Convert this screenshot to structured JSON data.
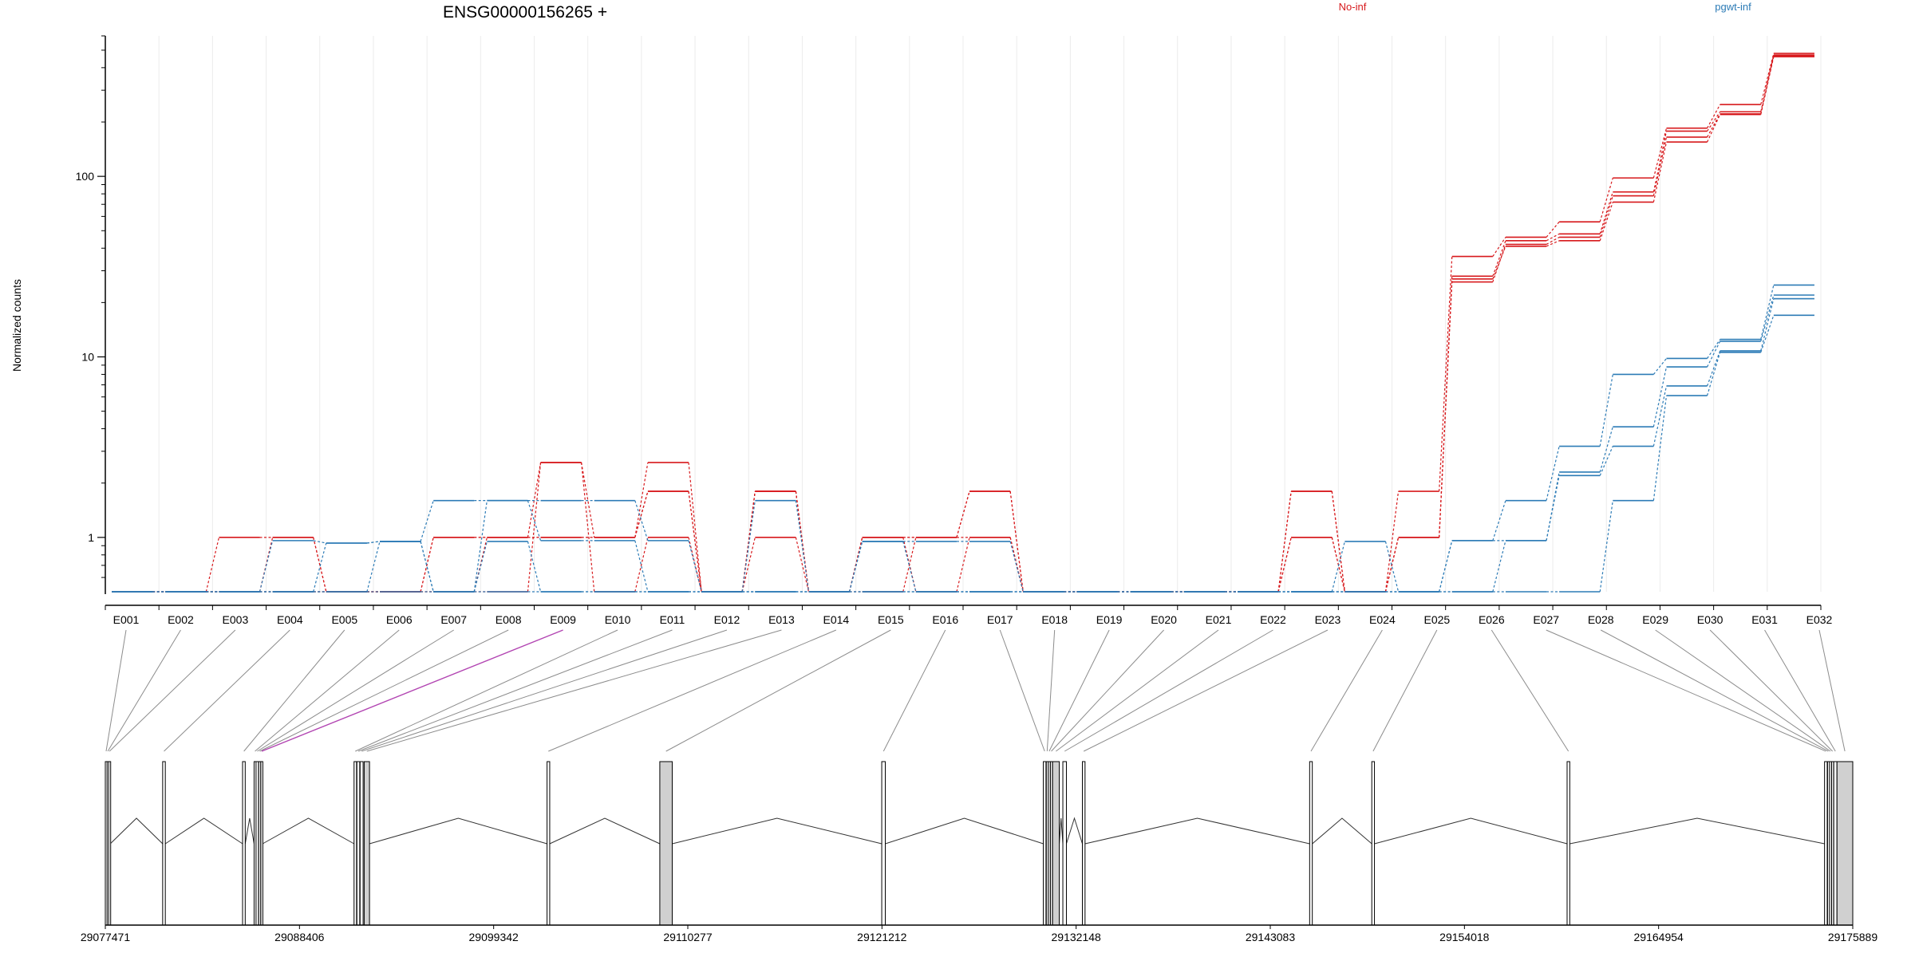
{
  "chart_data": {
    "type": "line",
    "title": "ENSG00000156265 +",
    "ylabel": "Normalized counts",
    "xlabel": "",
    "y_scale": "log",
    "ylim": [
      0.5,
      600
    ],
    "y_ticks": [
      {
        "value": 1,
        "label": "1"
      },
      {
        "value": 10,
        "label": "10"
      },
      {
        "value": 100,
        "label": "100"
      }
    ],
    "grid": true,
    "legend_position": "top-right",
    "categories": [
      "E001",
      "E002",
      "E003",
      "E004",
      "E005",
      "E006",
      "E007",
      "E008",
      "E009",
      "E010",
      "E011",
      "E012",
      "E013",
      "E014",
      "E015",
      "E016",
      "E017",
      "E018",
      "E019",
      "E020",
      "E021",
      "E022",
      "E023",
      "E024",
      "E025",
      "E026",
      "E027",
      "E028",
      "E029",
      "E030",
      "E031",
      "E032"
    ],
    "legend": [
      {
        "name": "No-inf",
        "color": "#d7191c"
      },
      {
        "name": "pgwt-inf",
        "color": "#2c7bb6"
      }
    ],
    "series": [
      {
        "group": "No-inf",
        "color": "#d7191c",
        "values": [
          0.5,
          0.5,
          1.0,
          1.0,
          0.5,
          0.5,
          1.0,
          1.0,
          2.6,
          1.0,
          2.6,
          0.5,
          1.8,
          0.5,
          1.0,
          1.0,
          1.8,
          0.5,
          0.5,
          0.5,
          0.5,
          0.5,
          1.8,
          0.5,
          1.8,
          36,
          46,
          56,
          98,
          185,
          250,
          480
        ]
      },
      {
        "group": "No-inf",
        "color": "#d7191c",
        "values": [
          0.5,
          0.5,
          0.5,
          1.0,
          0.5,
          0.5,
          1.0,
          1.0,
          1.0,
          1.0,
          1.8,
          0.5,
          1.8,
          0.5,
          1.0,
          1.0,
          1.0,
          0.5,
          0.5,
          0.5,
          0.5,
          0.5,
          1.0,
          0.5,
          1.0,
          28,
          44,
          48,
          82,
          178,
          228,
          470
        ]
      },
      {
        "group": "No-inf",
        "color": "#d7191c",
        "values": [
          0.5,
          0.5,
          0.5,
          0.5,
          0.5,
          0.5,
          0.5,
          1.0,
          1.0,
          1.0,
          1.8,
          0.5,
          1.0,
          0.5,
          1.0,
          0.5,
          1.0,
          0.5,
          0.5,
          0.5,
          0.5,
          0.5,
          1.0,
          0.5,
          1.0,
          26,
          42,
          46,
          78,
          165,
          222,
          465
        ]
      },
      {
        "group": "No-inf",
        "color": "#d7191c",
        "values": [
          0.5,
          0.5,
          0.5,
          0.5,
          0.5,
          0.5,
          0.5,
          0.5,
          2.6,
          0.5,
          1.0,
          0.5,
          1.8,
          0.5,
          0.5,
          1.0,
          1.8,
          0.5,
          0.5,
          0.5,
          0.5,
          0.5,
          1.8,
          0.5,
          1.0,
          27,
          41,
          44,
          72,
          155,
          220,
          460
        ]
      },
      {
        "group": "pgwt-inf",
        "color": "#2c7bb6",
        "values": [
          0.5,
          0.5,
          0.5,
          0.96,
          0.93,
          0.95,
          1.6,
          1.6,
          1.6,
          1.6,
          0.96,
          0.5,
          1.6,
          0.5,
          0.95,
          0.95,
          0.95,
          0.5,
          0.5,
          0.5,
          0.5,
          0.5,
          0.5,
          0.95,
          0.5,
          0.96,
          1.6,
          3.2,
          8.0,
          9.8,
          12.5,
          25
        ]
      },
      {
        "group": "pgwt-inf",
        "color": "#2c7bb6",
        "values": [
          0.5,
          0.5,
          0.5,
          0.5,
          0.93,
          0.95,
          0.5,
          1.6,
          0.96,
          0.96,
          0.5,
          0.5,
          0.5,
          0.5,
          0.95,
          0.5,
          0.5,
          0.5,
          0.5,
          0.5,
          0.5,
          0.5,
          0.5,
          0.5,
          0.5,
          0.96,
          0.96,
          2.3,
          4.1,
          8.8,
          12.2,
          22
        ]
      },
      {
        "group": "pgwt-inf",
        "color": "#2c7bb6",
        "values": [
          0.5,
          0.5,
          0.5,
          0.5,
          0.5,
          0.95,
          0.5,
          0.95,
          0.5,
          0.5,
          0.5,
          0.5,
          0.5,
          0.5,
          0.5,
          0.5,
          0.5,
          0.5,
          0.5,
          0.5,
          0.5,
          0.5,
          0.5,
          0.5,
          0.5,
          0.5,
          0.96,
          2.2,
          3.2,
          6.9,
          10.8,
          21
        ]
      },
      {
        "group": "pgwt-inf",
        "color": "#2c7bb6",
        "values": [
          0.5,
          0.5,
          0.5,
          0.5,
          0.5,
          0.5,
          0.5,
          0.5,
          0.5,
          0.5,
          0.5,
          0.5,
          0.5,
          0.5,
          0.5,
          0.5,
          0.5,
          0.5,
          0.5,
          0.5,
          0.5,
          0.5,
          0.5,
          0.5,
          0.5,
          0.5,
          0.5,
          0.5,
          1.6,
          6.1,
          10.6,
          17
        ]
      }
    ],
    "genomic_axis": {
      "range": [
        29077471,
        29175889
      ],
      "tick_labels": [
        "29077471",
        "29088406",
        "29099342",
        "29110277",
        "29121212",
        "29132148",
        "29143083",
        "29154018",
        "29164954",
        "29175889"
      ]
    },
    "exons": [
      {
        "id": "E001",
        "start": 29077471,
        "end": 29077560
      },
      {
        "id": "E002",
        "start": 29077570,
        "end": 29077650
      },
      {
        "id": "E003",
        "start": 29077660,
        "end": 29077750
      },
      {
        "id": "E004",
        "start": 29080700,
        "end": 29080850
      },
      {
        "id": "E005",
        "start": 29085200,
        "end": 29085350
      },
      {
        "id": "E006",
        "start": 29085850,
        "end": 29085950
      },
      {
        "id": "E007",
        "start": 29085960,
        "end": 29086100
      },
      {
        "id": "E008",
        "start": 29086110,
        "end": 29086220
      },
      {
        "id": "E009",
        "start": 29086230,
        "end": 29086330
      },
      {
        "id": "E010",
        "start": 29091480,
        "end": 29091620
      },
      {
        "id": "E011",
        "start": 29091640,
        "end": 29091800
      },
      {
        "id": "E012",
        "start": 29091820,
        "end": 29091990
      },
      {
        "id": "E013",
        "start": 29092050,
        "end": 29092350
      },
      {
        "id": "E014",
        "start": 29102350,
        "end": 29102500
      },
      {
        "id": "E015",
        "start": 29108700,
        "end": 29109400
      },
      {
        "id": "E016",
        "start": 29121200,
        "end": 29121400
      },
      {
        "id": "E017",
        "start": 29130300,
        "end": 29130450
      },
      {
        "id": "E018",
        "start": 29130470,
        "end": 29130560
      },
      {
        "id": "E019",
        "start": 29130580,
        "end": 29130680
      },
      {
        "id": "E020",
        "start": 29130700,
        "end": 29130800
      },
      {
        "id": "E021",
        "start": 29130820,
        "end": 29131200
      },
      {
        "id": "E022",
        "start": 29131400,
        "end": 29131600
      },
      {
        "id": "E023",
        "start": 29132500,
        "end": 29132650
      },
      {
        "id": "E024",
        "start": 29145300,
        "end": 29145450
      },
      {
        "id": "E025",
        "start": 29148800,
        "end": 29148950
      },
      {
        "id": "E026",
        "start": 29159800,
        "end": 29159950
      },
      {
        "id": "E027",
        "start": 29174300,
        "end": 29174450
      },
      {
        "id": "E028",
        "start": 29174470,
        "end": 29174560
      },
      {
        "id": "E029",
        "start": 29174580,
        "end": 29174680
      },
      {
        "id": "E030",
        "start": 29174700,
        "end": 29174800
      },
      {
        "id": "E031",
        "start": 29174820,
        "end": 29175000
      },
      {
        "id": "E032",
        "start": 29175000,
        "end": 29175889
      }
    ],
    "highlighted_exon": "E009"
  }
}
